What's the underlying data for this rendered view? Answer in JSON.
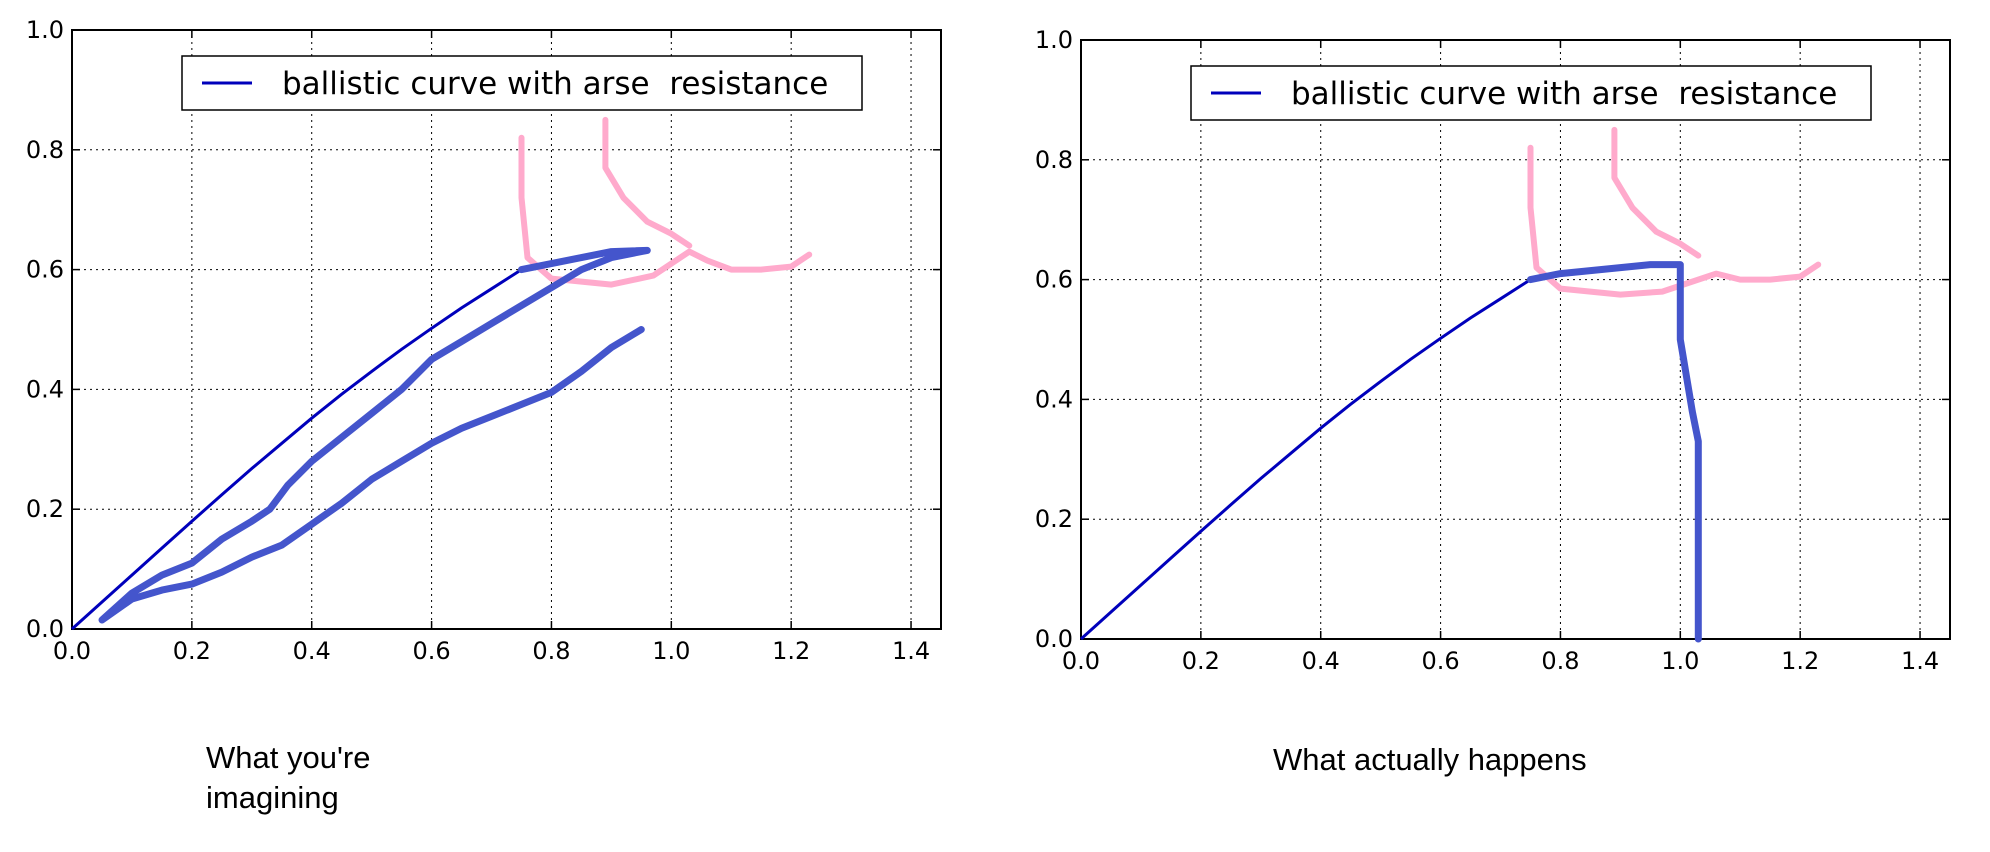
{
  "chart_data": [
    {
      "type": "line",
      "xlim": [
        0.0,
        1.45
      ],
      "ylim": [
        0.0,
        1.0
      ],
      "x_ticks": [
        "0.0",
        "0.2",
        "0.4",
        "0.6",
        "0.8",
        "1.0",
        "1.2",
        "1.4"
      ],
      "y_ticks": [
        "0.0",
        "0.2",
        "0.4",
        "0.6",
        "0.8",
        "1.0"
      ],
      "grid": true,
      "legend_position": "top-center",
      "series": [
        {
          "name": "ballistic curve with arse  resistance",
          "color": "#0000bb",
          "points": [
            [
              0.0,
              0.0
            ],
            [
              0.05,
              0.045
            ],
            [
              0.1,
              0.09
            ],
            [
              0.15,
              0.135
            ],
            [
              0.2,
              0.18
            ],
            [
              0.25,
              0.224
            ],
            [
              0.3,
              0.268
            ],
            [
              0.35,
              0.31
            ],
            [
              0.4,
              0.352
            ],
            [
              0.45,
              0.392
            ],
            [
              0.5,
              0.43
            ],
            [
              0.55,
              0.467
            ],
            [
              0.6,
              0.502
            ],
            [
              0.65,
              0.536
            ],
            [
              0.7,
              0.568
            ],
            [
              0.75,
              0.6
            ]
          ]
        }
      ],
      "drawn_annotations": [
        {
          "description": "hand-drawn blue curve",
          "color": "#4455cc",
          "points": [
            [
              0.75,
              0.6
            ],
            [
              0.8,
              0.61
            ],
            [
              0.85,
              0.62
            ],
            [
              0.9,
              0.63
            ],
            [
              0.96,
              0.632
            ],
            [
              0.9,
              0.62
            ],
            [
              0.85,
              0.6
            ],
            [
              0.8,
              0.57
            ],
            [
              0.75,
              0.54
            ],
            [
              0.7,
              0.51
            ],
            [
              0.65,
              0.48
            ],
            [
              0.6,
              0.45
            ],
            [
              0.55,
              0.4
            ],
            [
              0.5,
              0.36
            ],
            [
              0.45,
              0.32
            ],
            [
              0.4,
              0.28
            ],
            [
              0.36,
              0.24
            ],
            [
              0.33,
              0.2
            ],
            [
              0.3,
              0.18
            ],
            [
              0.25,
              0.15
            ],
            [
              0.2,
              0.11
            ],
            [
              0.15,
              0.09
            ],
            [
              0.1,
              0.06
            ],
            [
              0.05,
              0.015
            ],
            [
              0.1,
              0.05
            ],
            [
              0.15,
              0.065
            ],
            [
              0.2,
              0.075
            ],
            [
              0.25,
              0.095
            ],
            [
              0.3,
              0.12
            ],
            [
              0.35,
              0.14
            ],
            [
              0.4,
              0.175
            ],
            [
              0.45,
              0.21
            ],
            [
              0.5,
              0.25
            ],
            [
              0.55,
              0.28
            ],
            [
              0.6,
              0.31
            ],
            [
              0.65,
              0.335
            ],
            [
              0.7,
              0.355
            ],
            [
              0.75,
              0.375
            ],
            [
              0.8,
              0.395
            ],
            [
              0.85,
              0.43
            ],
            [
              0.9,
              0.47
            ],
            [
              0.95,
              0.5
            ]
          ]
        },
        {
          "description": "hand-drawn pink outline",
          "color": "#ffaacc",
          "points": [
            [
              0.75,
              0.82
            ],
            [
              0.75,
              0.72
            ],
            [
              0.76,
              0.62
            ],
            [
              0.8,
              0.585
            ],
            [
              0.9,
              0.575
            ],
            [
              0.97,
              0.59
            ],
            [
              1.0,
              0.61
            ],
            [
              1.03,
              0.63
            ],
            [
              1.06,
              0.615
            ],
            [
              1.1,
              0.6
            ],
            [
              1.15,
              0.6
            ],
            [
              1.2,
              0.605
            ],
            [
              1.23,
              0.625
            ]
          ],
          "points_2": [
            [
              0.89,
              0.85
            ],
            [
              0.89,
              0.77
            ],
            [
              0.92,
              0.72
            ],
            [
              0.96,
              0.68
            ],
            [
              1.0,
              0.66
            ],
            [
              1.03,
              0.64
            ]
          ]
        }
      ],
      "caption": "What you're\nimagining"
    },
    {
      "type": "line",
      "xlim": [
        0.0,
        1.45
      ],
      "ylim": [
        0.0,
        1.0
      ],
      "x_ticks": [
        "0.0",
        "0.2",
        "0.4",
        "0.6",
        "0.8",
        "1.0",
        "1.2",
        "1.4"
      ],
      "y_ticks": [
        "0.0",
        "0.2",
        "0.4",
        "0.6",
        "0.8",
        "1.0"
      ],
      "grid": true,
      "legend_position": "top-center",
      "series": [
        {
          "name": "ballistic curve with arse  resistance",
          "color": "#0000bb",
          "points": [
            [
              0.0,
              0.0
            ],
            [
              0.05,
              0.045
            ],
            [
              0.1,
              0.09
            ],
            [
              0.15,
              0.135
            ],
            [
              0.2,
              0.18
            ],
            [
              0.25,
              0.224
            ],
            [
              0.3,
              0.268
            ],
            [
              0.35,
              0.31
            ],
            [
              0.4,
              0.352
            ],
            [
              0.45,
              0.392
            ],
            [
              0.5,
              0.43
            ],
            [
              0.55,
              0.467
            ],
            [
              0.6,
              0.502
            ],
            [
              0.65,
              0.536
            ],
            [
              0.7,
              0.568
            ],
            [
              0.75,
              0.6
            ]
          ]
        }
      ],
      "drawn_annotations": [
        {
          "description": "hand-drawn blue curve",
          "color": "#4455cc",
          "points": [
            [
              0.75,
              0.6
            ],
            [
              0.8,
              0.61
            ],
            [
              0.85,
              0.615
            ],
            [
              0.9,
              0.62
            ],
            [
              0.95,
              0.625
            ],
            [
              1.0,
              0.625
            ],
            [
              1.0,
              0.5
            ],
            [
              1.01,
              0.44
            ],
            [
              1.02,
              0.38
            ],
            [
              1.03,
              0.33
            ],
            [
              1.03,
              0.2
            ],
            [
              1.03,
              0.0
            ]
          ]
        },
        {
          "description": "hand-drawn pink outline",
          "color": "#ffaacc",
          "points": [
            [
              0.75,
              0.82
            ],
            [
              0.75,
              0.72
            ],
            [
              0.76,
              0.62
            ],
            [
              0.8,
              0.585
            ],
            [
              0.9,
              0.575
            ],
            [
              0.97,
              0.58
            ],
            [
              1.0,
              0.59
            ],
            [
              1.03,
              0.6
            ],
            [
              1.06,
              0.61
            ],
            [
              1.1,
              0.6
            ],
            [
              1.15,
              0.6
            ],
            [
              1.2,
              0.605
            ],
            [
              1.23,
              0.625
            ]
          ],
          "points_2": [
            [
              0.89,
              0.85
            ],
            [
              0.89,
              0.77
            ],
            [
              0.92,
              0.72
            ],
            [
              0.96,
              0.68
            ],
            [
              1.0,
              0.66
            ],
            [
              1.03,
              0.64
            ]
          ]
        }
      ],
      "caption": "What actually happens"
    }
  ]
}
